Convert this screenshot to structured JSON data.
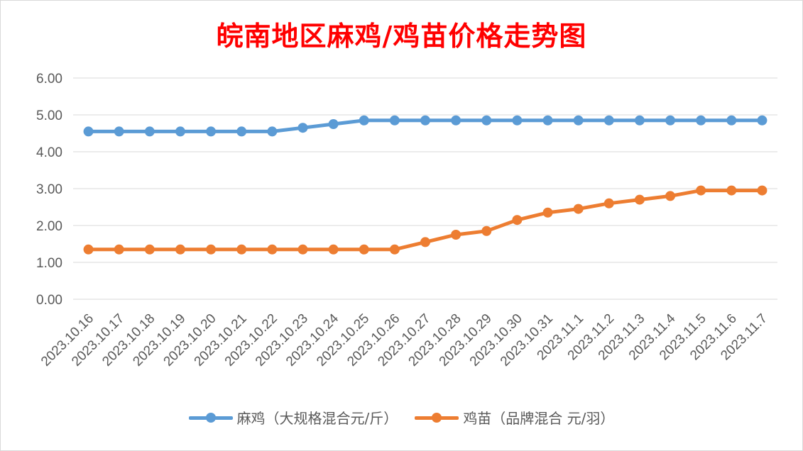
{
  "chart_data": {
    "type": "line",
    "title": "皖南地区麻鸡/鸡苗价格走势图",
    "categories": [
      "2023.10.16",
      "2023.10.17",
      "2023.10.18",
      "2023.10.19",
      "2023.10.20",
      "2023.10.21",
      "2023.10.22",
      "2023.10.23",
      "2023.10.24",
      "2023.10.25",
      "2023.10.26",
      "2023.10.27",
      "2023.10.28",
      "2023.10.29",
      "2023.10.30",
      "2023.10.31",
      "2023.11.1",
      "2023.11.2",
      "2023.11.3",
      "2023.11.4",
      "2023.11.5",
      "2023.11.6",
      "2023.11.7"
    ],
    "series": [
      {
        "name": "麻鸡（大规格混合元/斤）",
        "color": "#5b9bd5",
        "values": [
          4.55,
          4.55,
          4.55,
          4.55,
          4.55,
          4.55,
          4.55,
          4.65,
          4.75,
          4.85,
          4.85,
          4.85,
          4.85,
          4.85,
          4.85,
          4.85,
          4.85,
          4.85,
          4.85,
          4.85,
          4.85,
          4.85,
          4.85
        ]
      },
      {
        "name": "鸡苗（品牌混合 元/羽）",
        "color": "#ed7d31",
        "values": [
          1.35,
          1.35,
          1.35,
          1.35,
          1.35,
          1.35,
          1.35,
          1.35,
          1.35,
          1.35,
          1.35,
          1.55,
          1.75,
          1.85,
          2.15,
          2.35,
          2.45,
          2.6,
          2.7,
          2.8,
          2.95,
          2.95,
          2.95
        ]
      }
    ],
    "yticks": [
      "0.00",
      "1.00",
      "2.00",
      "3.00",
      "4.00",
      "5.00",
      "6.00"
    ],
    "ylim": [
      0,
      6
    ],
    "grid": true,
    "legend_position": "bottom",
    "title_color": "#ff0000"
  }
}
